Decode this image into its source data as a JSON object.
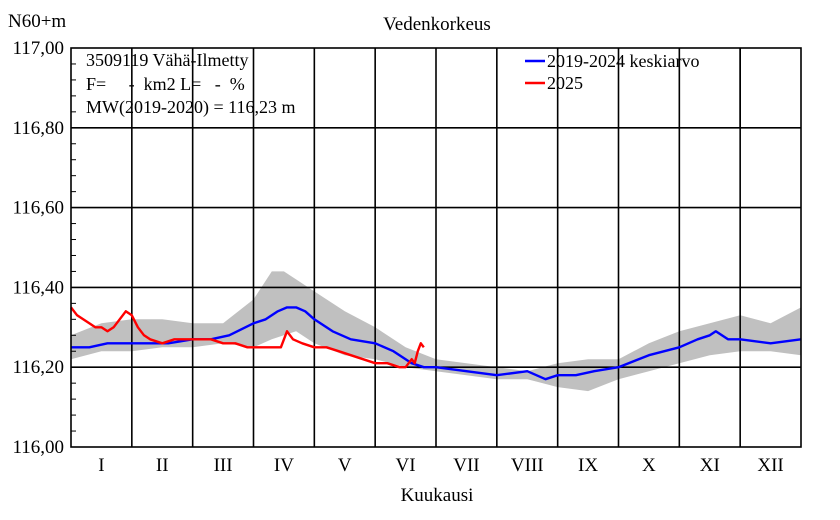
{
  "chart_data": {
    "type": "line",
    "title": "Vedenkorkeus",
    "ylabel": "N60+m",
    "xlabel": "Kuukausi",
    "ylim": [
      116.0,
      117.0
    ],
    "y_ticks": [
      "116,00",
      "116,20",
      "116,40",
      "116,60",
      "116,80",
      "117,00"
    ],
    "categories": [
      "I",
      "II",
      "III",
      "IV",
      "V",
      "VI",
      "VII",
      "VIII",
      "IX",
      "X",
      "XI",
      "XII"
    ],
    "info_lines": [
      "3509119 Vähä-Ilmetty",
      "F=     -  km2 L=   -  %",
      "MW(2019-2020) = 116,23 m"
    ],
    "grid": true,
    "legend_position": "top-right",
    "series": [
      {
        "name": "2019-2024 keskiarvo",
        "color": "#0000ff",
        "x": [
          0,
          0.3,
          0.6,
          1.0,
          1.3,
          1.6,
          2.0,
          2.3,
          2.6,
          3.0,
          3.2,
          3.4,
          3.55,
          3.7,
          3.85,
          4.0,
          4.3,
          4.6,
          5.0,
          5.3,
          5.6,
          5.8,
          6.0,
          6.5,
          7.0,
          7.5,
          7.8,
          8.0,
          8.3,
          8.6,
          9.0,
          9.5,
          10.0,
          10.3,
          10.5,
          10.6,
          10.8,
          11.0,
          11.5,
          12.0
        ],
        "y": [
          116.25,
          116.25,
          116.26,
          116.26,
          116.26,
          116.26,
          116.27,
          116.27,
          116.28,
          116.31,
          116.32,
          116.34,
          116.35,
          116.35,
          116.34,
          116.32,
          116.29,
          116.27,
          116.26,
          116.24,
          116.21,
          116.2,
          116.2,
          116.19,
          116.18,
          116.19,
          116.17,
          116.18,
          116.18,
          116.19,
          116.2,
          116.23,
          116.25,
          116.27,
          116.28,
          116.29,
          116.27,
          116.27,
          116.26,
          116.27
        ]
      },
      {
        "name": "2025",
        "color": "#ff0000",
        "x": [
          0,
          0.1,
          0.2,
          0.3,
          0.4,
          0.5,
          0.6,
          0.7,
          0.8,
          0.9,
          1.0,
          1.1,
          1.2,
          1.3,
          1.5,
          1.7,
          1.9,
          2.1,
          2.3,
          2.5,
          2.7,
          2.9,
          3.1,
          3.3,
          3.45,
          3.55,
          3.65,
          3.8,
          4.0,
          4.2,
          4.4,
          4.6,
          4.8,
          5.0,
          5.2,
          5.4,
          5.5,
          5.6,
          5.65,
          5.7,
          5.75,
          5.8
        ],
        "y": [
          116.35,
          116.33,
          116.32,
          116.31,
          116.3,
          116.3,
          116.29,
          116.3,
          116.32,
          116.34,
          116.33,
          116.3,
          116.28,
          116.27,
          116.26,
          116.27,
          116.27,
          116.27,
          116.27,
          116.26,
          116.26,
          116.25,
          116.25,
          116.25,
          116.25,
          116.29,
          116.27,
          116.26,
          116.25,
          116.25,
          116.24,
          116.23,
          116.22,
          116.21,
          116.21,
          116.2,
          116.2,
          116.22,
          116.21,
          116.24,
          116.26,
          116.25
        ]
      },
      {
        "name": "",
        "type": "area",
        "color": "#c0c0c0",
        "x": [
          0,
          0.5,
          1.0,
          1.5,
          2.0,
          2.5,
          3.0,
          3.3,
          3.5,
          3.7,
          4.0,
          4.5,
          5.0,
          5.5,
          6.0,
          6.5,
          7.0,
          7.5,
          8.0,
          8.5,
          9.0,
          9.5,
          10.0,
          10.5,
          11.0,
          11.5,
          12.0
        ],
        "low": [
          116.22,
          116.24,
          116.24,
          116.25,
          116.25,
          116.26,
          116.25,
          116.27,
          116.28,
          116.29,
          116.26,
          116.23,
          116.22,
          116.2,
          116.19,
          116.18,
          116.17,
          116.17,
          116.15,
          116.14,
          116.17,
          116.19,
          116.21,
          116.23,
          116.24,
          116.24,
          116.23
        ],
        "high": [
          116.28,
          116.31,
          116.32,
          116.32,
          116.31,
          116.31,
          116.37,
          116.44,
          116.44,
          116.42,
          116.39,
          116.34,
          116.3,
          116.25,
          116.22,
          116.21,
          116.2,
          116.19,
          116.21,
          116.22,
          116.22,
          116.26,
          116.29,
          116.31,
          116.33,
          116.31,
          116.35
        ]
      }
    ]
  }
}
